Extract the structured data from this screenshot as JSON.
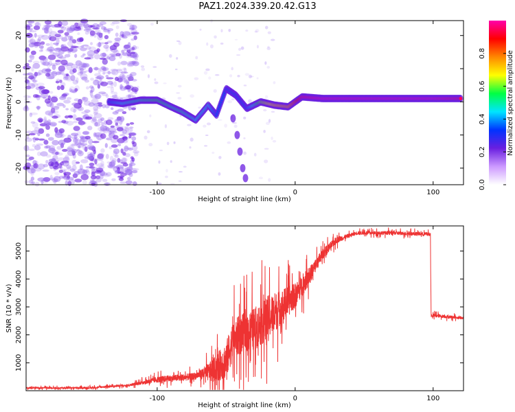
{
  "title": "PAZ1.2024.339.20.42.G13",
  "colors": {
    "snr_line": "#ee3333",
    "ridge": "#6a1fe0",
    "background_speckle": "#9a6ef0"
  },
  "chart_data": [
    {
      "type": "heatmap",
      "name": "spectrogram",
      "xlabel": "Height of straight line (km)",
      "ylabel": "Frequency (Hz)",
      "xlim": [
        -195,
        122
      ],
      "ylim": [
        -25,
        24.5
      ],
      "x_ticks": [
        -100,
        0,
        100
      ],
      "y_ticks": [
        -20,
        -10,
        0,
        10,
        20
      ],
      "colorbar": {
        "label": "Normalized spectral amplitude",
        "range": [
          0,
          1
        ],
        "ticks": [
          0.0,
          0.2,
          0.4,
          0.6,
          0.8
        ],
        "colormap": [
          "#ffffff",
          "#cc99ff",
          "#6a1fe0",
          "#0033ff",
          "#00e5ff",
          "#00ff44",
          "#ffff00",
          "#ff8800",
          "#ff0000",
          "#ff00aa"
        ]
      },
      "ridge": [
        {
          "x": -135,
          "f": 0.0,
          "a": 0.35
        },
        {
          "x": -125,
          "f": -0.5,
          "a": 0.45
        },
        {
          "x": -112,
          "f": 0.5,
          "a": 0.5
        },
        {
          "x": -100,
          "f": 0.5,
          "a": 0.55
        },
        {
          "x": -90,
          "f": -1.5,
          "a": 0.5
        },
        {
          "x": -82,
          "f": -3.0,
          "a": 0.5
        },
        {
          "x": -72,
          "f": -5.5,
          "a": 0.45
        },
        {
          "x": -63,
          "f": -1.0,
          "a": 0.45
        },
        {
          "x": -57,
          "f": -4.0,
          "a": 0.35
        },
        {
          "x": -50,
          "f": 4.0,
          "a": 0.35
        },
        {
          "x": -43,
          "f": 2.0,
          "a": 0.35
        },
        {
          "x": -35,
          "f": -2.0,
          "a": 0.35
        },
        {
          "x": -25,
          "f": 0.0,
          "a": 0.6
        },
        {
          "x": -15,
          "f": -1.0,
          "a": 0.7
        },
        {
          "x": -5,
          "f": -1.5,
          "a": 0.75
        },
        {
          "x": 5,
          "f": 1.5,
          "a": 0.95
        },
        {
          "x": 20,
          "f": 1.0,
          "a": 1.0
        },
        {
          "x": 40,
          "f": 1.0,
          "a": 1.0
        },
        {
          "x": 60,
          "f": 1.0,
          "a": 1.0
        },
        {
          "x": 80,
          "f": 1.0,
          "a": 1.0
        },
        {
          "x": 100,
          "f": 1.0,
          "a": 1.0
        },
        {
          "x": 120,
          "f": 1.0,
          "a": 0.95
        }
      ],
      "descending_branches": [
        {
          "x": -45,
          "f": -5.0
        },
        {
          "x": -42,
          "f": -10.0
        },
        {
          "x": -40,
          "f": -15.0
        },
        {
          "x": -38,
          "f": -20.0
        },
        {
          "x": -36,
          "f": -23.0
        }
      ]
    },
    {
      "type": "line",
      "name": "snr",
      "xlabel": "Height of straight line (km)",
      "ylabel": "SNR (10 * v/v)",
      "xlim": [
        -195,
        122
      ],
      "ylim": [
        0,
        5900
      ],
      "x_ticks": [
        -100,
        0,
        100
      ],
      "y_ticks": [
        1000,
        2000,
        3000,
        4000,
        5000
      ],
      "trend": [
        {
          "x": -195,
          "y": 100
        },
        {
          "x": -150,
          "y": 100
        },
        {
          "x": -120,
          "y": 200
        },
        {
          "x": -100,
          "y": 400
        },
        {
          "x": -75,
          "y": 500
        },
        {
          "x": -60,
          "y": 700
        },
        {
          "x": -50,
          "y": 1100
        },
        {
          "x": -45,
          "y": 1800
        },
        {
          "x": -40,
          "y": 2000
        },
        {
          "x": -30,
          "y": 2200
        },
        {
          "x": -20,
          "y": 2600
        },
        {
          "x": -10,
          "y": 3000
        },
        {
          "x": 0,
          "y": 3400
        },
        {
          "x": 10,
          "y": 4100
        },
        {
          "x": 20,
          "y": 4900
        },
        {
          "x": 30,
          "y": 5400
        },
        {
          "x": 45,
          "y": 5650
        },
        {
          "x": 70,
          "y": 5650
        },
        {
          "x": 98,
          "y": 5600
        },
        {
          "x": 98.5,
          "y": 2700
        },
        {
          "x": 122,
          "y": 2600
        }
      ],
      "noise_amplitude": [
        {
          "x": -195,
          "a": 60
        },
        {
          "x": -120,
          "a": 80
        },
        {
          "x": -100,
          "a": 250
        },
        {
          "x": -70,
          "a": 300
        },
        {
          "x": -50,
          "a": 1500
        },
        {
          "x": -20,
          "a": 1800
        },
        {
          "x": 0,
          "a": 1000
        },
        {
          "x": 20,
          "a": 400
        },
        {
          "x": 40,
          "a": 150
        },
        {
          "x": 98,
          "a": 150
        },
        {
          "x": 122,
          "a": 100
        }
      ]
    }
  ]
}
